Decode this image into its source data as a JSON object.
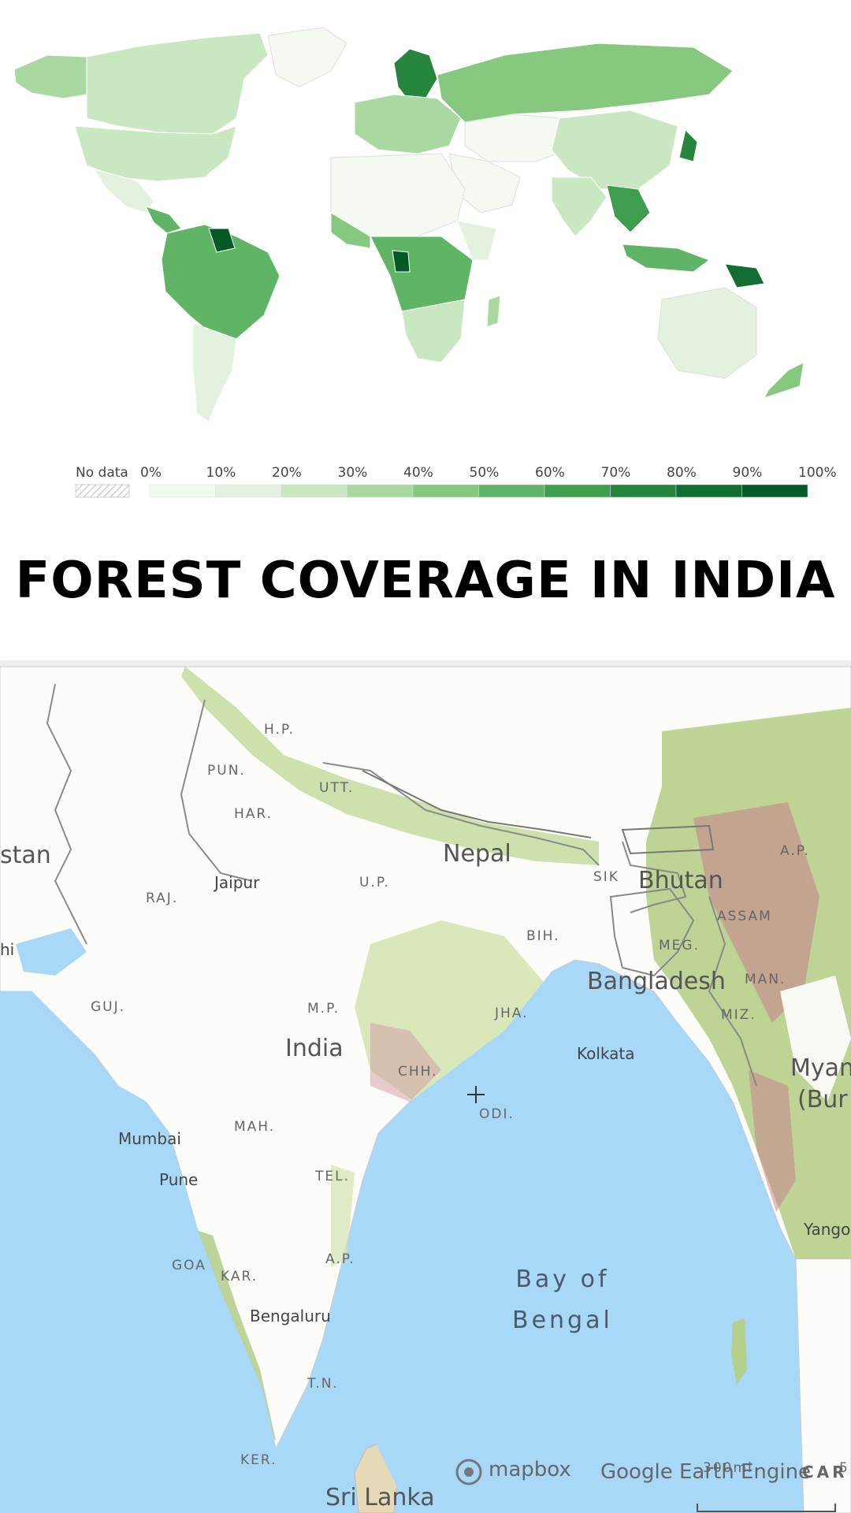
{
  "title": "FOREST COVERAGE IN INDIA",
  "legend": {
    "no_data_label": "No data",
    "ticks": [
      "0%",
      "10%",
      "20%",
      "30%",
      "40%",
      "50%",
      "60%",
      "70%",
      "80%",
      "90%",
      "100%"
    ],
    "colors": [
      "#f4faf2",
      "#e3f2de",
      "#c9e7c1",
      "#a9d9a0",
      "#86c97e",
      "#5fb565",
      "#3f9e4e",
      "#26863e",
      "#126e30",
      "#035a26"
    ]
  },
  "india_map": {
    "countries": [
      "Nepal",
      "Bhutan",
      "Bangladesh",
      "India",
      "Myan",
      "(Bur",
      "Sri Lanka",
      "stan"
    ],
    "states": [
      "H.P.",
      "PUN.",
      "HAR.",
      "UTT.",
      "RAJ.",
      "U.P.",
      "SIK",
      "A.P.",
      "ASSAM",
      "BIH.",
      "MEG.",
      "MAN.",
      "GUJ.",
      "M.P.",
      "JHA.",
      "MIZ.",
      "CHH.",
      "MAH.",
      "ODI.",
      "TEL.",
      "A.P.",
      "GOA",
      "KAR.",
      "T.N.",
      "KER."
    ],
    "cities": [
      "Jaipur",
      "Kolkata",
      "Mumbai",
      "Pune",
      "Bengaluru",
      "Yango",
      "hi"
    ],
    "sea": "Bay of\nBengal",
    "scale": "300mi",
    "scale_next": "5",
    "attribution": {
      "mapbox": "mapbox",
      "gee": "Google Earth Engine",
      "carto": "CAR"
    }
  }
}
